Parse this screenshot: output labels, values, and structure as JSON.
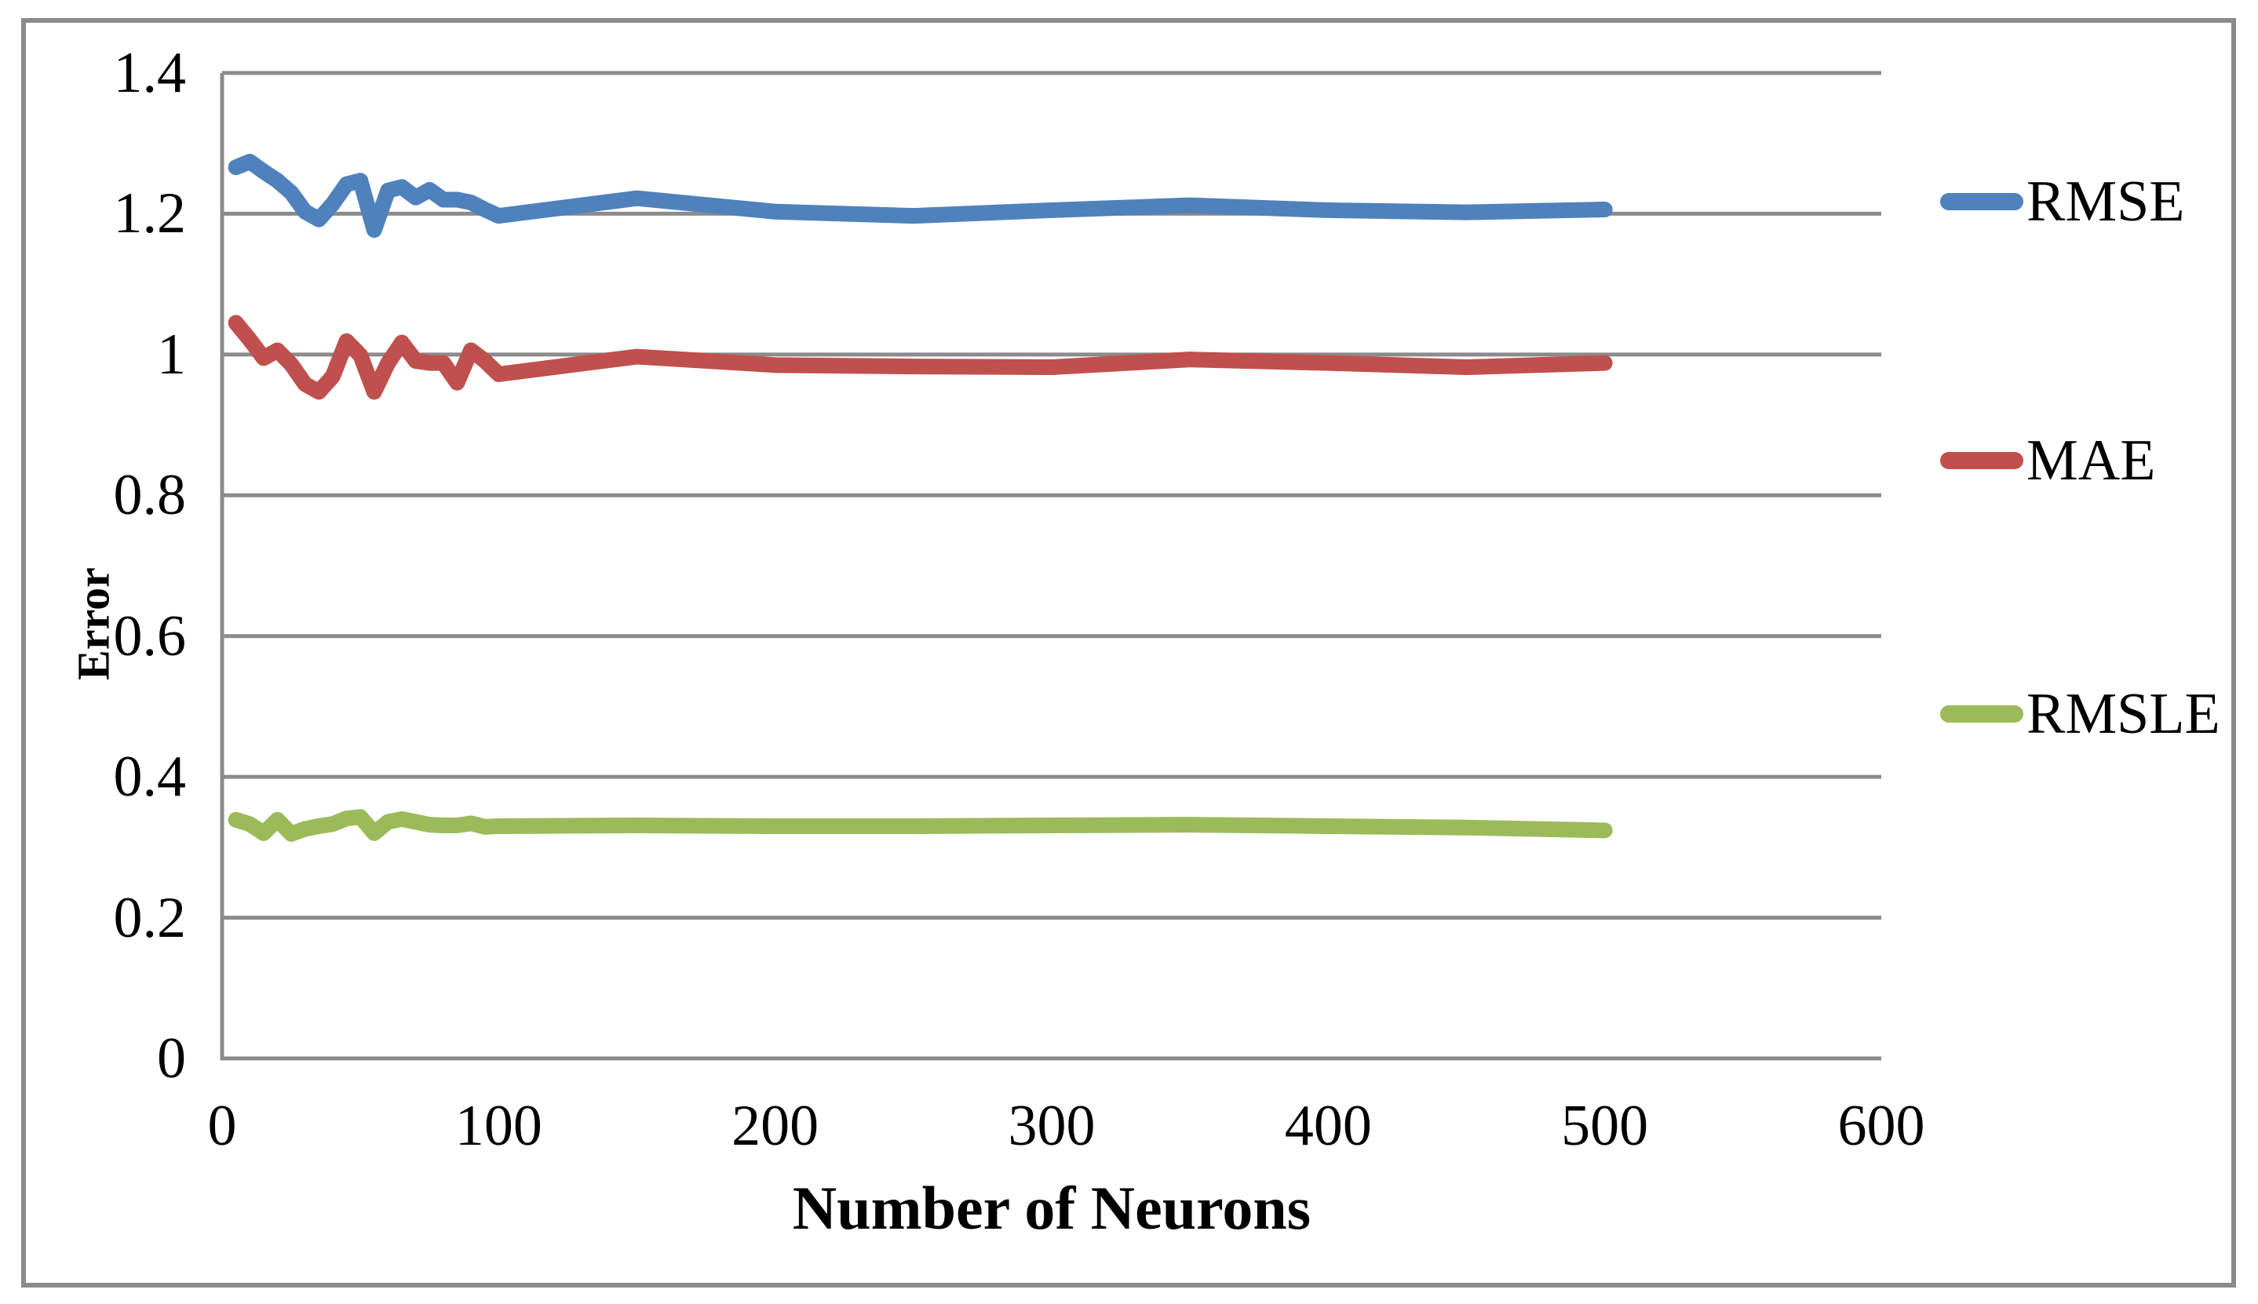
{
  "figure": {
    "background_color": "#ffffff",
    "border_color": "#8b8b8b"
  },
  "chart_data": {
    "type": "line",
    "title": "",
    "xlabel": "Number of Neurons",
    "ylabel": "Error",
    "xlim": [
      0,
      600
    ],
    "ylim": [
      0,
      1.4
    ],
    "grid": "horizontal",
    "legend_position": "right",
    "axis_color": "#8b8b8b",
    "gridline_color": "#8b8b8b",
    "xticks": [
      {
        "value": 0,
        "label": "0"
      },
      {
        "value": 100,
        "label": "100"
      },
      {
        "value": 200,
        "label": "200"
      },
      {
        "value": 300,
        "label": "300"
      },
      {
        "value": 400,
        "label": "400"
      },
      {
        "value": 500,
        "label": "500"
      },
      {
        "value": 600,
        "label": "600"
      }
    ],
    "yticks": [
      {
        "value": 0,
        "label": "0"
      },
      {
        "value": 0.2,
        "label": "0.2"
      },
      {
        "value": 0.4,
        "label": "0.4"
      },
      {
        "value": 0.6,
        "label": "0.6"
      },
      {
        "value": 0.8,
        "label": "0.8"
      },
      {
        "value": 1,
        "label": "1"
      },
      {
        "value": 1.2,
        "label": "1.2"
      },
      {
        "value": 1.4,
        "label": "1.4"
      }
    ],
    "x": [
      5,
      10,
      15,
      20,
      25,
      30,
      35,
      40,
      45,
      50,
      55,
      60,
      65,
      70,
      75,
      80,
      85,
      90,
      95,
      100,
      150,
      200,
      250,
      300,
      350,
      400,
      450,
      500
    ],
    "series": [
      {
        "name": "RMSE",
        "color": "#4F81BD",
        "values": [
          1.266,
          1.274,
          1.26,
          1.247,
          1.23,
          1.203,
          1.192,
          1.214,
          1.242,
          1.247,
          1.177,
          1.233,
          1.238,
          1.223,
          1.234,
          1.22,
          1.22,
          1.216,
          1.206,
          1.197,
          1.222,
          1.203,
          1.197,
          1.205,
          1.212,
          1.205,
          1.202,
          1.206
        ]
      },
      {
        "name": "MAE",
        "color": "#C0504D",
        "values": [
          1.045,
          1.021,
          0.995,
          1.006,
          0.986,
          0.958,
          0.947,
          0.969,
          1.019,
          0.999,
          0.947,
          0.988,
          1.017,
          0.991,
          0.988,
          0.988,
          0.96,
          1.006,
          0.991,
          0.972,
          0.997,
          0.985,
          0.983,
          0.982,
          0.993,
          0.988,
          0.982,
          0.988
        ]
      },
      {
        "name": "RMSLE",
        "color": "#9BBB59",
        "values": [
          0.339,
          0.333,
          0.32,
          0.339,
          0.319,
          0.326,
          0.33,
          0.333,
          0.341,
          0.343,
          0.32,
          0.336,
          0.34,
          0.336,
          0.332,
          0.331,
          0.331,
          0.334,
          0.329,
          0.33,
          0.331,
          0.33,
          0.33,
          0.331,
          0.332,
          0.33,
          0.328,
          0.324
        ]
      }
    ]
  }
}
